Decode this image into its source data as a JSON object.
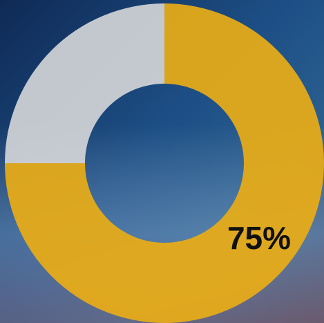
{
  "chart_data": {
    "type": "donut",
    "values": [
      75,
      25
    ],
    "value_labels": [
      "75%",
      null
    ],
    "colors": [
      "#e8ac17",
      "#dcdcdc"
    ],
    "start_angle": 0,
    "direction": "clockwise"
  }
}
